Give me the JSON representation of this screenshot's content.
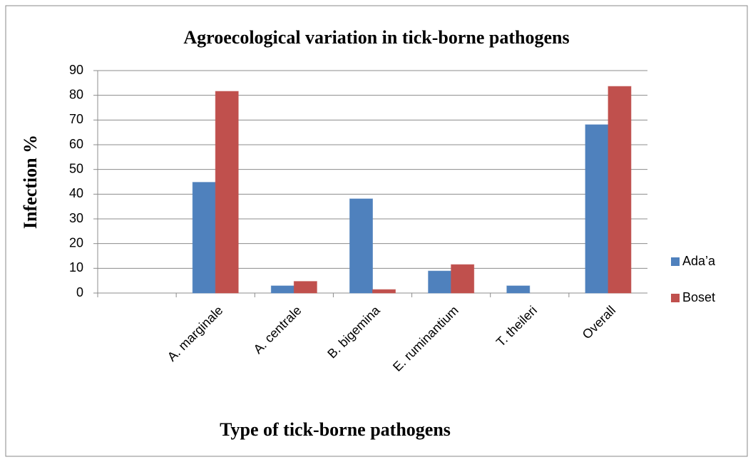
{
  "chart_data": {
    "type": "bar",
    "title": "Agroecological variation in tick-borne pathogens",
    "x_label": "Type of tick-borne pathogens",
    "y_label": "Infection %",
    "categories": [
      null,
      "A. marginale",
      "A. centrale",
      "B. bigemina",
      "E. ruminantium",
      "T. theileri",
      "Overall"
    ],
    "series": [
      {
        "name": "Ada’a",
        "color": "#4f81bd",
        "values": [
          null,
          44.8,
          2.9,
          38.1,
          8.9,
          2.9,
          68.1
        ]
      },
      {
        "name": "Boset",
        "color": "#c0504d",
        "values": [
          null,
          81.6,
          4.7,
          1.4,
          11.5,
          0,
          83.6
        ]
      }
    ],
    "ylim": [
      0,
      90
    ],
    "yticks": [
      0,
      10,
      20,
      30,
      40,
      50,
      60,
      70,
      80,
      90
    ],
    "grid": true,
    "legend": "right"
  }
}
